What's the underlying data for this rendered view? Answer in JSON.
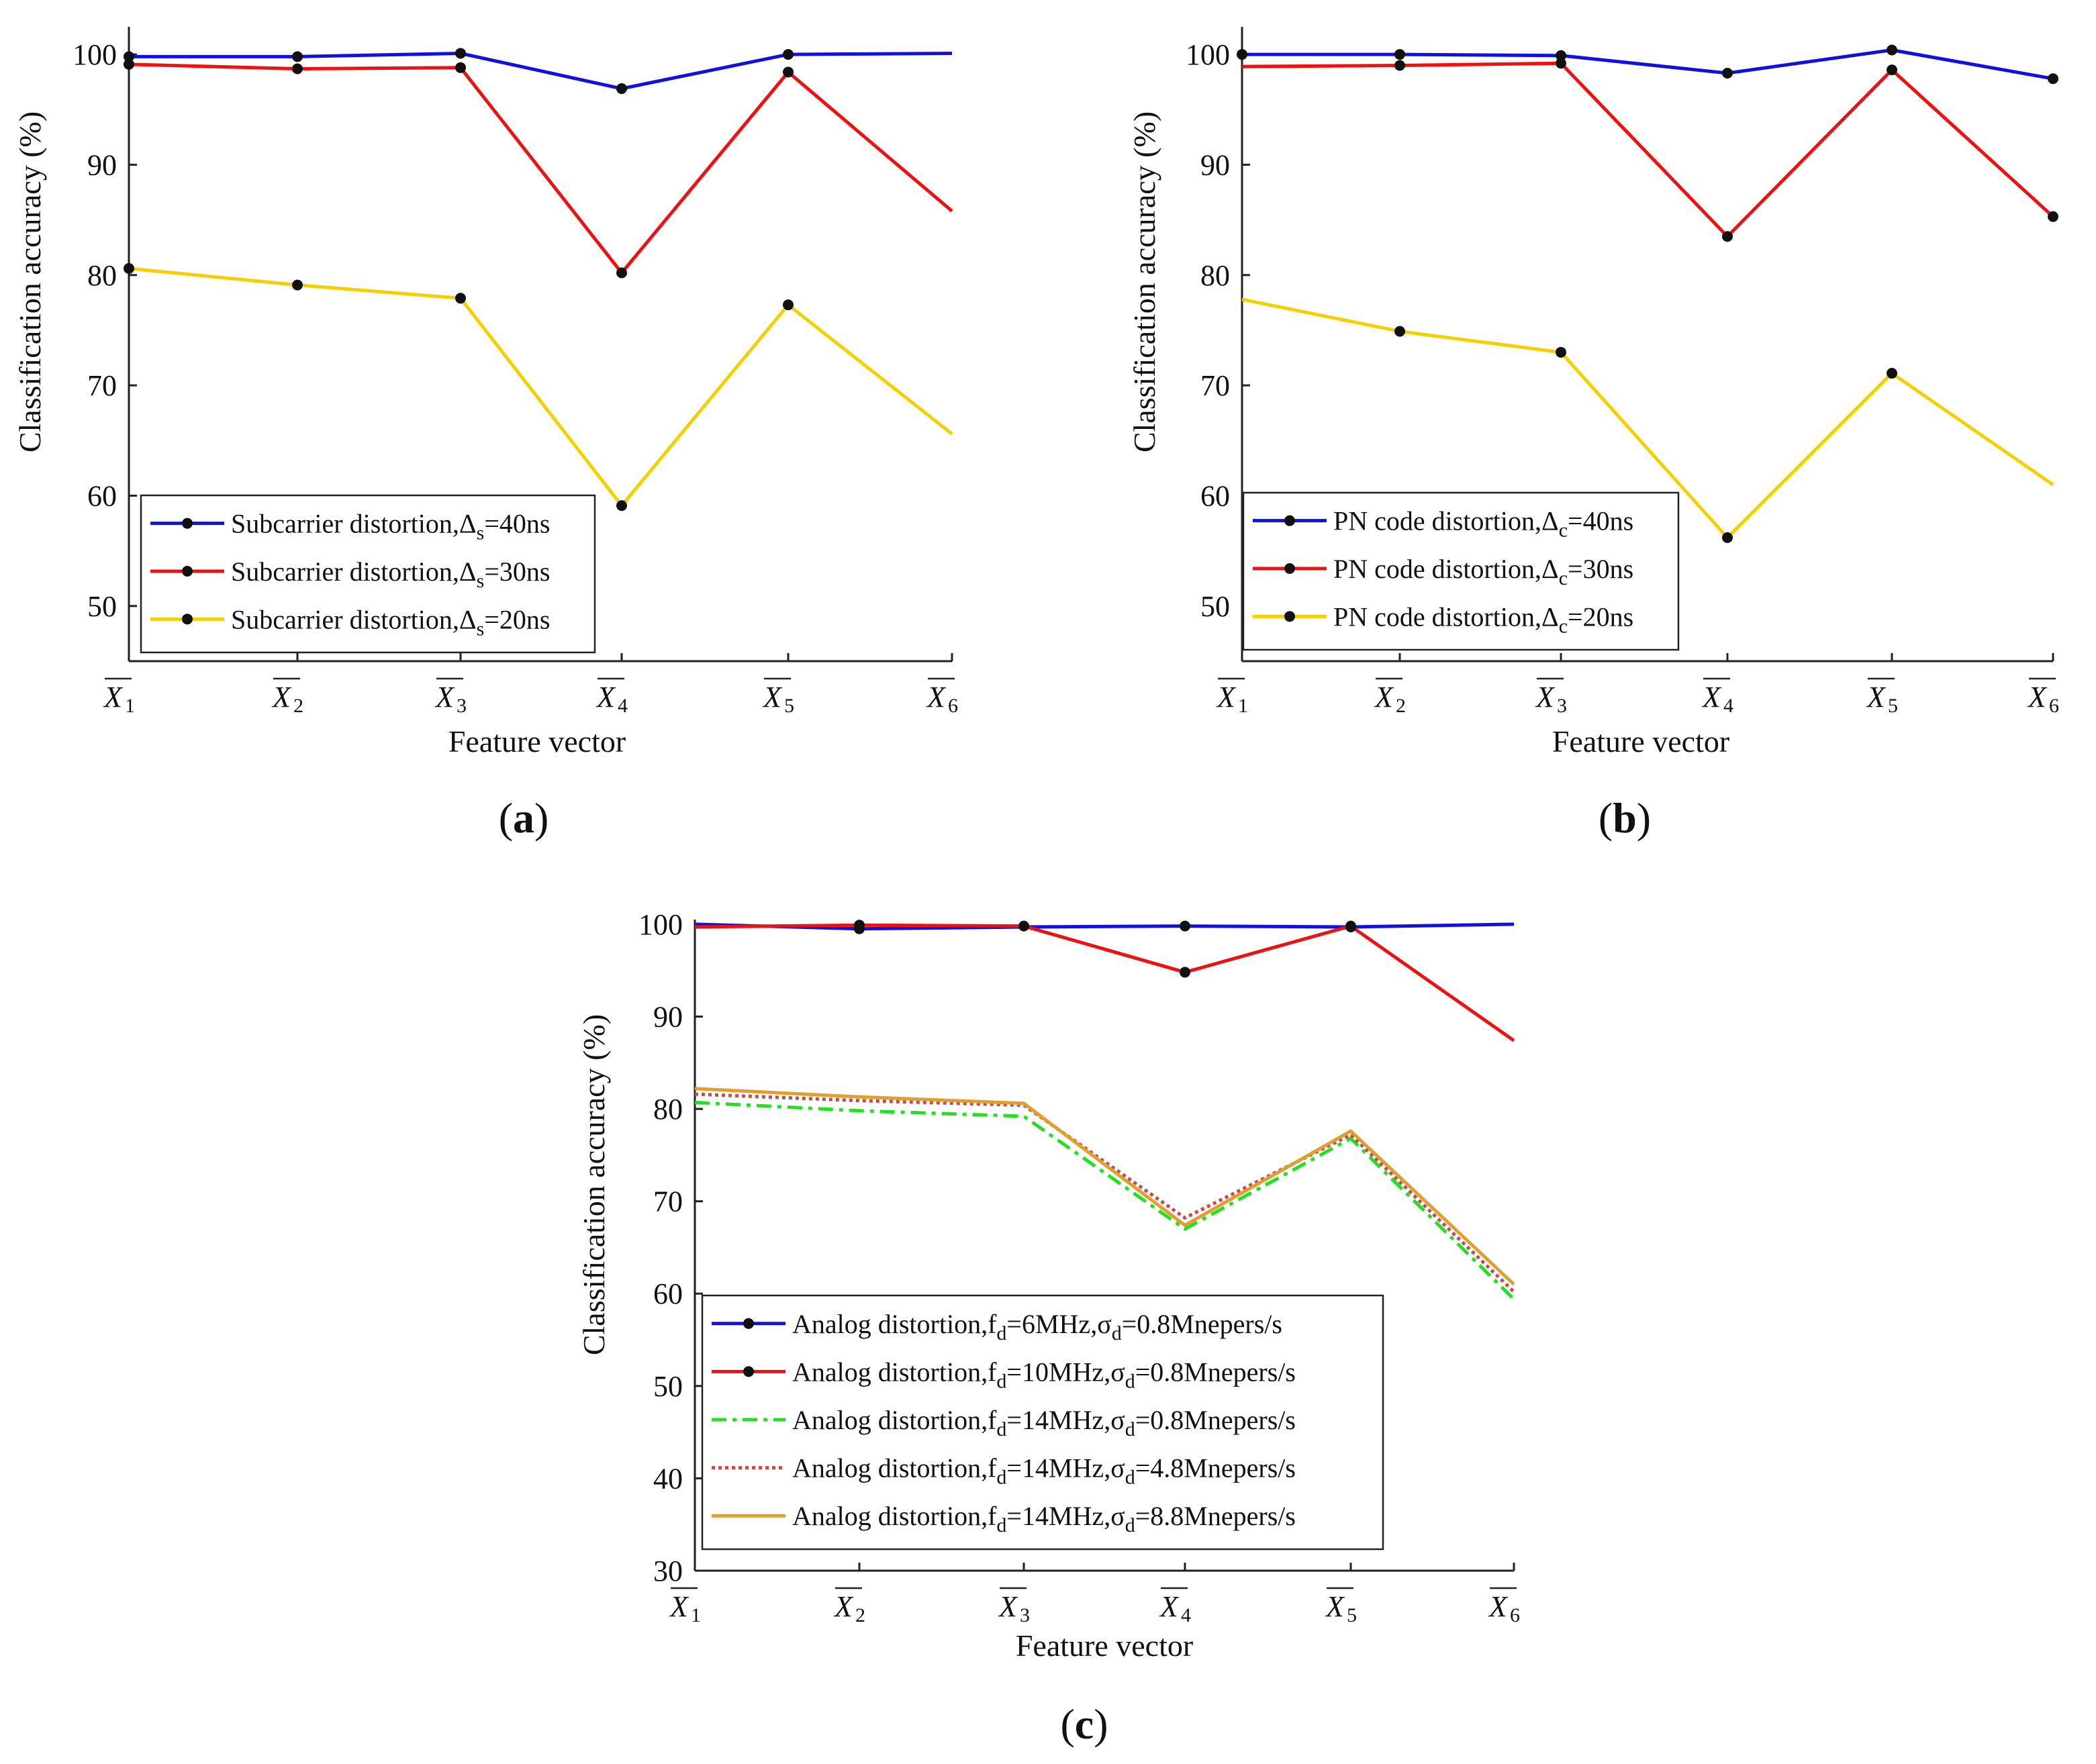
{
  "xvar": "X",
  "yticks_ab": [
    "50",
    "60",
    "70",
    "80",
    "90",
    "100"
  ],
  "yticks_c": [
    "30",
    "40",
    "50",
    "60",
    "70",
    "80",
    "90",
    "100"
  ],
  "chart_data": [
    {
      "id": "a",
      "type": "line",
      "panel_label": [
        "(",
        "a",
        ")"
      ],
      "xlabel": "Feature vector",
      "ylabel": "Classification accuracy (%)",
      "categories": [
        "1",
        "2",
        "3",
        "4",
        "5",
        "6"
      ],
      "ylim": [
        45,
        102.5
      ],
      "legend_position": "bottom-left",
      "series": [
        {
          "name": "Subcarrier distortion,Δs=40ns",
          "legend": [
            "Subcarrier distortion,Δ",
            "s",
            "=40ns"
          ],
          "color": "#1010e0",
          "dash": "",
          "markers": [
            0,
            1,
            2,
            3,
            4
          ],
          "values": [
            99.8,
            99.8,
            100.1,
            96.9,
            100.0,
            100.1
          ]
        },
        {
          "name": "Subcarrier distortion,Δs=30ns",
          "legend": [
            "Subcarrier distortion,Δ",
            "s",
            "=30ns"
          ],
          "color": "#ee1111",
          "dash": "",
          "markers": [
            0,
            1,
            2,
            3,
            4
          ],
          "values": [
            99.1,
            98.7,
            98.8,
            80.2,
            98.4,
            85.8
          ]
        },
        {
          "name": "Subcarrier distortion,Δs=20ns",
          "legend": [
            "Subcarrier distortion,Δ",
            "s",
            "=20ns"
          ],
          "color": "#f5d000",
          "dash": "",
          "markers": [
            0,
            1,
            2,
            3,
            4
          ],
          "values": [
            80.6,
            79.1,
            77.9,
            59.1,
            77.3,
            65.6
          ]
        }
      ]
    },
    {
      "id": "b",
      "type": "line",
      "panel_label": [
        "(",
        "b",
        ")"
      ],
      "xlabel": "Feature vector",
      "ylabel": "Classification accuracy (%)",
      "categories": [
        "1",
        "2",
        "3",
        "4",
        "5",
        "6"
      ],
      "ylim": [
        45,
        102.5
      ],
      "legend_position": "bottom-left",
      "series": [
        {
          "name": "PN code distortion,Δc=40ns",
          "legend": [
            "PN code distortion,Δ",
            "c",
            "=40ns"
          ],
          "color": "#1010e0",
          "dash": "",
          "markers": [
            0,
            1,
            2,
            3,
            4,
            5
          ],
          "values": [
            100.0,
            100.0,
            99.9,
            98.3,
            100.4,
            97.8
          ]
        },
        {
          "name": "PN code distortion,Δc=30ns",
          "legend": [
            "PN code distortion,Δ",
            "c",
            "=30ns"
          ],
          "color": "#ee1111",
          "dash": "",
          "markers": [
            1,
            2,
            3,
            4,
            5
          ],
          "values": [
            98.9,
            99.0,
            99.2,
            83.5,
            98.6,
            85.3
          ]
        },
        {
          "name": "PN code distortion,Δc=20ns",
          "legend": [
            "PN code distortion,Δ",
            "c",
            "=20ns"
          ],
          "color": "#f5d000",
          "dash": "",
          "markers": [
            1,
            2,
            3,
            4
          ],
          "values": [
            77.8,
            74.9,
            73.0,
            56.2,
            71.1,
            61.0
          ]
        }
      ]
    },
    {
      "id": "c",
      "type": "line",
      "panel_label": [
        "(",
        "c",
        ")"
      ],
      "xlabel": "Feature vector",
      "ylabel": "Classification accuracy (%)",
      "categories": [
        "1",
        "2",
        "3",
        "4",
        "5",
        "6"
      ],
      "ylim": [
        30,
        100.5
      ],
      "legend_position": "bottom-left",
      "series": [
        {
          "name": "Analog distortion,fd=6MHz,σd=0.8Mnepers/s",
          "legend": [
            "Analog distortion,f",
            "d",
            "=6MHz,σ",
            "d",
            "=0.8Mnepers/s"
          ],
          "color": "#1010e0",
          "dash": "",
          "markers": [
            1,
            3,
            4
          ],
          "values": [
            100.0,
            99.5,
            99.7,
            99.8,
            99.7,
            100.0
          ]
        },
        {
          "name": "Analog distortion,fd=10MHz,σd=0.8Mnepers/s",
          "legend": [
            "Analog distortion,f",
            "d",
            "=10MHz,σ",
            "d",
            "=0.8Mnepers/s"
          ],
          "color": "#ee1111",
          "dash": "",
          "markers": [
            1,
            2,
            3,
            4
          ],
          "values": [
            99.7,
            99.9,
            99.8,
            94.8,
            99.8,
            87.4
          ]
        },
        {
          "name": "Analog distortion,fd=14MHz,σd=0.8Mnepers/s",
          "legend": [
            "Analog distortion,f",
            "d",
            "=14MHz,σ",
            "d",
            "=0.8Mnepers/s"
          ],
          "color": "#22e022",
          "dash": "22 9 6 9",
          "markers": [],
          "values": [
            80.7,
            79.8,
            79.2,
            67.0,
            76.8,
            59.4
          ]
        },
        {
          "name": "Analog distortion,fd=14MHz,σd=4.8Mnepers/s",
          "legend": [
            "Analog distortion,f",
            "d",
            "=14MHz,σ",
            "d",
            "=4.8Mnepers/s"
          ],
          "color": "#c84b4b",
          "dash": "5 5",
          "markers": [],
          "values": [
            81.6,
            80.9,
            80.4,
            68.2,
            77.2,
            60.2
          ]
        },
        {
          "name": "Analog distortion,fd=14MHz,σd=8.8Mnepers/s",
          "legend": [
            "Analog distortion,f",
            "d",
            "=14MHz,σ",
            "d",
            "=8.8Mnepers/s"
          ],
          "color": "#e0a030",
          "dash": "",
          "markers": [],
          "values": [
            82.2,
            81.3,
            80.6,
            67.4,
            77.6,
            61.0
          ]
        }
      ]
    }
  ]
}
